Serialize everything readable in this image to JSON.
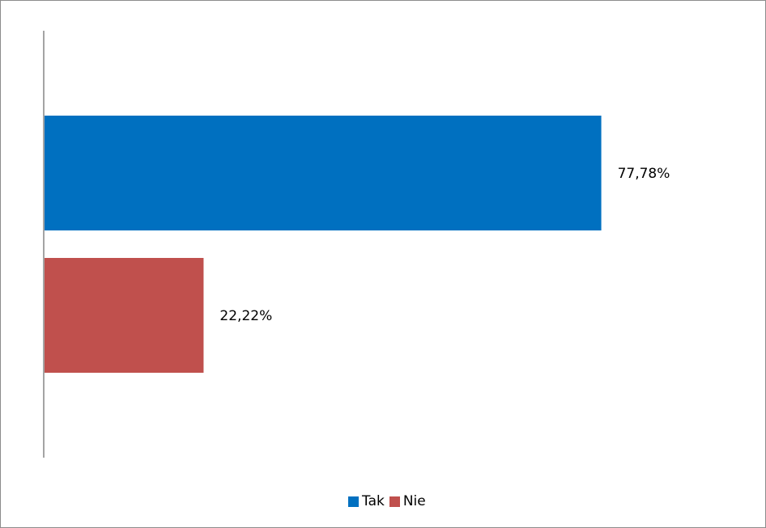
{
  "chart_data": {
    "type": "bar",
    "orientation": "horizontal",
    "categories": [
      "Tak",
      "Nie"
    ],
    "values": [
      77.78,
      22.22
    ],
    "data_labels": [
      "77,78%",
      "22,22%"
    ],
    "colors": [
      "#0070c0",
      "#c0504d"
    ],
    "xlim": [
      0,
      100
    ],
    "grid": false,
    "legend": {
      "position": "bottom",
      "entries": [
        {
          "label": "Tak",
          "color": "#0070c0"
        },
        {
          "label": "Nie",
          "color": "#c0504d"
        }
      ]
    }
  }
}
